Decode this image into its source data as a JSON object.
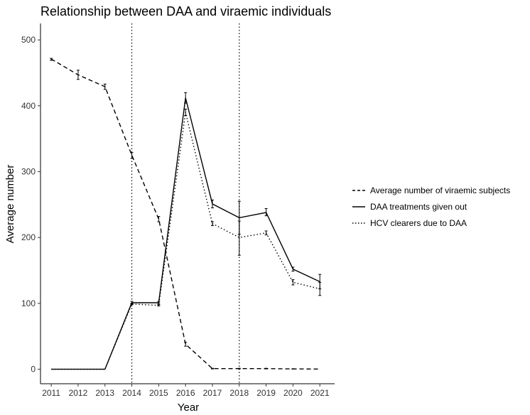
{
  "chart_data": {
    "type": "line",
    "title": "Relationship between DAA and viraemic individuals",
    "xlabel": "Year",
    "ylabel": "Average number",
    "x": [
      2011,
      2012,
      2013,
      2014,
      2015,
      2016,
      2017,
      2018,
      2019,
      2020,
      2021
    ],
    "xlim": [
      2010.6,
      2021.55
    ],
    "ylim": [
      -22,
      525
    ],
    "yticks": [
      0,
      100,
      200,
      300,
      400,
      500
    ],
    "grid": false,
    "legend_position": "right",
    "vlines": [
      2014,
      2018
    ],
    "series": [
      {
        "name": "Average number of viraemic subjects",
        "linestyle": "dashed",
        "values": [
          471,
          447,
          429,
          325,
          228,
          38,
          1,
          1,
          1,
          0.5,
          0.3
        ],
        "error_low": [
          469,
          440,
          425,
          320,
          224,
          35,
          0.5,
          0.5,
          0.5,
          0.2,
          0.1
        ],
        "error_high": [
          472,
          454,
          433,
          329,
          232,
          41,
          1.5,
          1.5,
          1.5,
          0.8,
          0.5
        ]
      },
      {
        "name": "DAA treatments given out",
        "linestyle": "solid",
        "values": [
          0,
          0,
          0,
          101,
          101,
          412,
          251,
          230,
          238,
          152,
          133
        ],
        "error_low": [
          0,
          0,
          0,
          99,
          99,
          404,
          245,
          205,
          233,
          149,
          122
        ],
        "error_high": [
          0,
          0,
          0,
          103,
          103,
          420,
          257,
          255,
          244,
          155,
          144
        ]
      },
      {
        "name": "HCV clearers due to DAA",
        "linestyle": "dotted",
        "values": [
          0,
          0,
          0,
          99,
          97,
          390,
          221,
          200,
          207,
          132,
          122
        ],
        "error_low": [
          0,
          0,
          0,
          98,
          96,
          385,
          218,
          173,
          204,
          128,
          112
        ],
        "error_high": [
          0,
          0,
          0,
          100,
          98,
          395,
          224,
          225,
          210,
          136,
          132
        ]
      }
    ]
  }
}
